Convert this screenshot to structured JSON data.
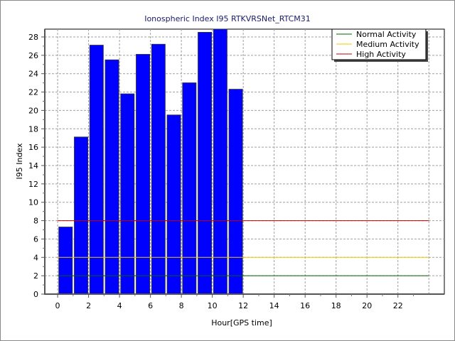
{
  "chart_data": {
    "type": "bar",
    "title": "Ionospheric Index I95 RTKVRSNet_RTCM31",
    "xlabel": "Hour[GPS time]",
    "ylabel": "I95 Index",
    "xlim": [
      -0.83,
      25
    ],
    "ylim": [
      0,
      28.85
    ],
    "xticks": [
      0,
      2,
      4,
      6,
      8,
      10,
      12,
      14,
      16,
      18,
      20,
      22
    ],
    "yticks": [
      0,
      2,
      4,
      6,
      8,
      10,
      12,
      14,
      16,
      18,
      20,
      22,
      24,
      26,
      28
    ],
    "grid": true,
    "legend_position": "top-right",
    "categories": [
      0,
      1,
      2,
      3,
      4,
      5,
      6,
      7,
      8,
      9,
      10,
      11
    ],
    "values": [
      7.3,
      17.1,
      27.1,
      25.5,
      21.8,
      26.1,
      27.2,
      19.5,
      23.0,
      28.5,
      29.0,
      22.3
    ],
    "bar_color": "#0000ff",
    "thresholds": [
      {
        "name": "Normal Activity",
        "value": 2,
        "color": "#006400"
      },
      {
        "name": "Medium Activity",
        "value": 4,
        "color": "#f0c800"
      },
      {
        "name": "High Activity",
        "value": 8,
        "color": "#c00000"
      }
    ],
    "threshold_xrange": [
      0,
      24
    ]
  }
}
